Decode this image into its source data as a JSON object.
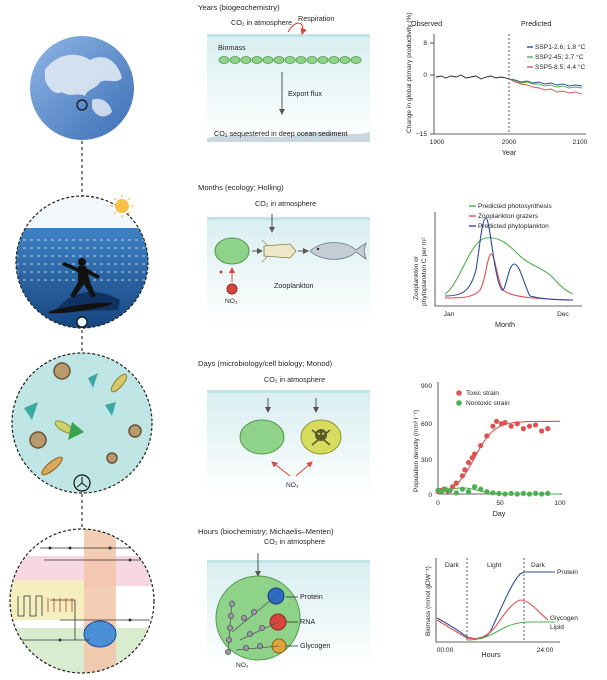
{
  "rows": [
    {
      "heading": "Years (biogeochemistry)",
      "labels": {
        "co2": "CO₂ in atmosphere",
        "respiration": "Respiration",
        "biomass": "Biomass",
        "export": "Export flux",
        "sediment": "CO₂ sequestered in deep ocean sediment"
      },
      "chart": {
        "ylabel": "Change in global primary productivity (%)",
        "xlabel": "Year",
        "observed": "Observed",
        "predicted": "Predicted",
        "legend": [
          "SSP1-2.6; 1.8 °C",
          "SSP2-45; 2.7 °C",
          "SSP5-8.5; 4.4 °C"
        ],
        "yticks": [
          "8",
          "0",
          "−15"
        ],
        "xticks": [
          "1900",
          "2000",
          "2100"
        ]
      }
    },
    {
      "heading": "Months (ecology; Holling)",
      "labels": {
        "co2": "CO₂ in atmosphere",
        "zooplankton": "Zooplankton",
        "no3": "NO₃"
      },
      "chart": {
        "ylabel": "Zooplankton or phytoplankton C per m²",
        "xlabel": "Month",
        "legend": [
          "Predicted photosynthesis",
          "Zooplankton grazers",
          "Predicted phytoplankton"
        ],
        "xticks": [
          "Jan",
          "Dec"
        ]
      }
    },
    {
      "heading": "Days (microbiology/cell biology; Monod)",
      "labels": {
        "co2": "CO₂ in atmosphere",
        "no3": "NO₃"
      },
      "chart": {
        "ylabel": "Population density (mm³ l⁻¹)",
        "xlabel": "Day",
        "legend": [
          "Toxic strain",
          "Nontoxic strain"
        ],
        "yticks": [
          "900",
          "600",
          "300",
          "0"
        ],
        "xticks": [
          "0",
          "50",
          "100"
        ]
      }
    },
    {
      "heading": "Hours (biochemistry; Michaelis–Menten)",
      "labels": {
        "co2": "CO₂ in atmosphere",
        "protein": "Protein",
        "rna": "RNA",
        "glycogen": "Glycogen",
        "no3": "NO₃"
      },
      "chart": {
        "ylabel": "Biomass (mmol gDW⁻¹)",
        "xlabel": "Hours",
        "phases": [
          "Dark",
          "Light",
          "Dark"
        ],
        "series_labels": [
          "Protein",
          "Glycogen",
          "Lipid"
        ],
        "xticks": [
          "00:00",
          "24:00"
        ]
      }
    }
  ],
  "colors": {
    "ocean_light": "#c5e6e8",
    "cell_green": "#8fd28a",
    "blue_series": "#2b4a9a",
    "green_series": "#4caf50",
    "red_series": "#e05252",
    "black_series": "#222222"
  }
}
